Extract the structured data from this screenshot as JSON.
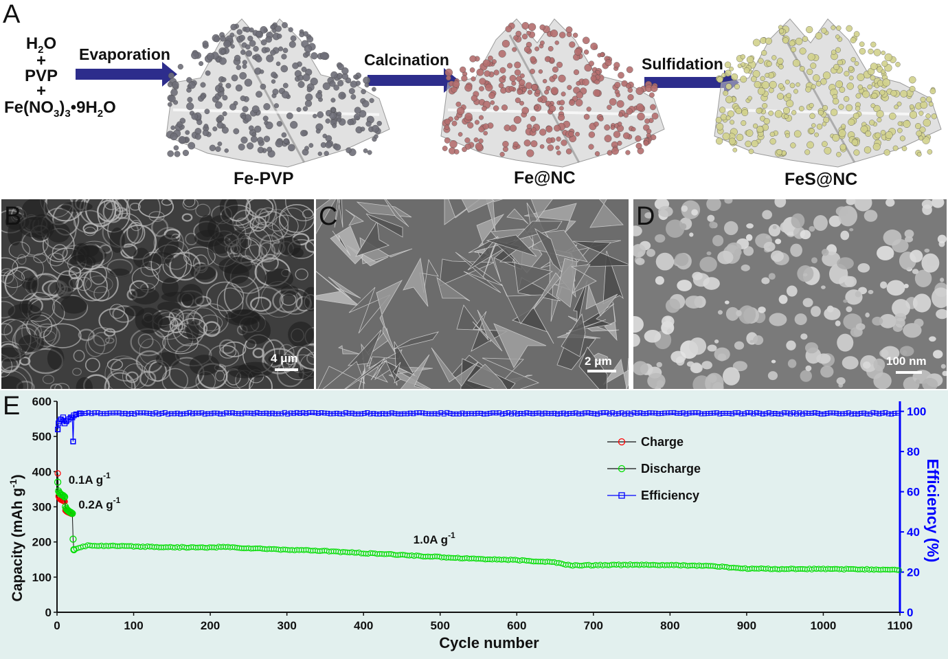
{
  "panels": {
    "a": "A",
    "b": "B",
    "c": "C",
    "d": "D",
    "e": "E"
  },
  "scheme": {
    "reagents": [
      {
        "main": "H",
        "sub": "2",
        "rest": "O"
      },
      {
        "main": "+"
      },
      {
        "main": "PVP"
      },
      {
        "main": "+"
      },
      {
        "main": "Fe(NO",
        "sub": "3",
        "rest": ")",
        "sub2": "3",
        "rest2": "•9H",
        "sub3": "2",
        "rest3": "O"
      }
    ],
    "steps": [
      "Evaporation",
      "Calcination",
      "Sulfidation"
    ],
    "stages": [
      "Fe-PVP",
      "Fe@NC",
      "FeS@NC"
    ],
    "stage_colors": [
      "#6e6e78",
      "#b46e6e",
      "#d2d28c"
    ],
    "arrow_color": "#2d2d8c"
  },
  "sem": {
    "b_scale": "4 μm",
    "c_scale": "2 μm",
    "d_scale": "100 nm"
  },
  "chart_data": {
    "type": "scatter",
    "xlabel": "Cycle number",
    "ylabel_left": "Capacity (mAh g-1)",
    "ylabel_right": "Efficiency (%)",
    "xlim": [
      0,
      1100
    ],
    "ylim_left": [
      0,
      600
    ],
    "ylim_right": [
      0,
      105
    ],
    "xticks": [
      0,
      100,
      200,
      300,
      400,
      500,
      600,
      700,
      800,
      900,
      1000,
      1100
    ],
    "yticks_left": [
      0,
      100,
      200,
      300,
      400,
      500,
      600
    ],
    "yticks_right": [
      0,
      20,
      40,
      60,
      80,
      100
    ],
    "legend": [
      "Charge",
      "Discharge",
      "Efficiency"
    ],
    "legend_position": "upper-right",
    "colors": {
      "charge": "#ff0000",
      "discharge": "#00dd00",
      "efficiency": "#0000ff",
      "axis_right": "#0000ff",
      "background": "#dff0ef"
    },
    "annotations": [
      {
        "text": "0.1A g",
        "sup": "-1",
        "x": 15,
        "y": 365
      },
      {
        "text": "0.2A g",
        "sup": "-1",
        "x": 28,
        "y": 295
      },
      {
        "text": "1.0A g",
        "sup": "-1",
        "x": 465,
        "y": 195
      }
    ],
    "series": [
      {
        "name": "Charge",
        "x": [
          1,
          2,
          3,
          4,
          5,
          6,
          7,
          8,
          9,
          10,
          11,
          12,
          13,
          14,
          15,
          16,
          17,
          18,
          19,
          20
        ],
        "y": [
          395,
          330,
          325,
          322,
          320,
          320,
          318,
          317,
          316,
          315,
          290,
          288,
          286,
          285,
          284,
          283,
          282,
          281,
          280,
          280
        ]
      },
      {
        "name": "Discharge",
        "x": [
          1,
          2,
          3,
          4,
          5,
          6,
          7,
          8,
          9,
          10,
          11,
          12,
          13,
          14,
          15,
          16,
          17,
          18,
          19,
          20,
          21,
          22
        ],
        "y": [
          370,
          345,
          340,
          338,
          336,
          334,
          333,
          332,
          330,
          328,
          300,
          295,
          292,
          290,
          288,
          286,
          285,
          284,
          282,
          281,
          208,
          178
        ],
        "trend_x": [
          22,
          40,
          60,
          100,
          150,
          200,
          215,
          250,
          300,
          350,
          400,
          450,
          500,
          550,
          600,
          650,
          670,
          700,
          750,
          800,
          850,
          900,
          950,
          1000,
          1050,
          1100
        ],
        "trend_y": [
          178,
          190,
          189,
          187,
          185,
          184,
          186,
          182,
          178,
          174,
          168,
          163,
          157,
          152,
          148,
          142,
          133,
          134,
          135,
          134,
          132,
          124,
          123,
          123,
          122,
          121
        ]
      },
      {
        "name": "Efficiency",
        "x": [
          1,
          2,
          3,
          5,
          8,
          10,
          12,
          15,
          18,
          20,
          21,
          22,
          25,
          30,
          40,
          100,
          200,
          300,
          400,
          500,
          600,
          700,
          800,
          900,
          1000,
          1100
        ],
        "y": [
          91,
          94,
          95,
          96,
          97,
          94,
          95,
          96,
          97,
          97,
          85,
          98,
          98.5,
          99,
          99,
          99,
          99,
          99,
          99,
          99,
          99,
          99,
          99,
          99,
          99,
          99
        ]
      }
    ]
  }
}
